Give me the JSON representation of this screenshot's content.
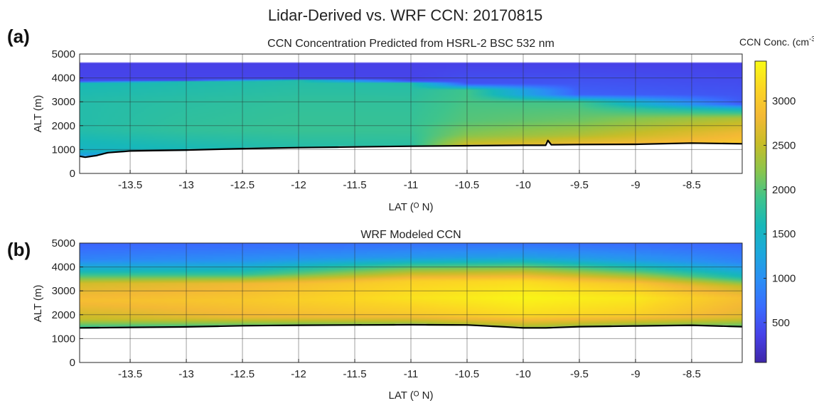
{
  "figure": {
    "title": "Lidar-Derived vs. WRF CCN: 20170815"
  },
  "colormap": [
    "#3e26a8",
    "#4741e8",
    "#3a6bfe",
    "#2b8ef5",
    "#1ca8dc",
    "#17b8b9",
    "#3fc48c",
    "#8bc54c",
    "#c8bd28",
    "#f4b935",
    "#fbd524",
    "#f9fb15"
  ],
  "chart_data": [
    {
      "type": "heatmap",
      "panel_label": "(a)",
      "title": "CCN Concentration Predicted from HSRL-2 BSC 532 nm",
      "xlabel": "LAT (ᴼ N)",
      "ylabel": "ALT (m)",
      "xlim": [
        -13.95,
        -8.05
      ],
      "ylim": [
        0,
        5000
      ],
      "xticks": [
        -13.5,
        -13,
        -12.5,
        -12,
        -11.5,
        -11,
        -10.5,
        -10,
        -9.5,
        -9,
        -8.5
      ],
      "xtick_labels": [
        "-13.5",
        "-13",
        "-12.5",
        "-12",
        "-11.5",
        "-11",
        "-10.5",
        "-10",
        "-9.5",
        "-9",
        "-8.5"
      ],
      "yticks": [
        0,
        1000,
        2000,
        3000,
        4000,
        5000
      ],
      "ytick_labels": [
        "0",
        "1000",
        "2000",
        "3000",
        "4000",
        "5000"
      ],
      "grid": true,
      "data_top_altitude": 4650,
      "ground_line": {
        "lat": [
          -13.95,
          -13.9,
          -13.8,
          -13.7,
          -13.5,
          -13.0,
          -12.5,
          -12.0,
          -11.5,
          -11.0,
          -10.5,
          -10.0,
          -9.8,
          -9.78,
          -9.75,
          -9.5,
          -9.0,
          -8.5,
          -8.05
        ],
        "alt": [
          720,
          680,
          750,
          870,
          940,
          980,
          1040,
          1080,
          1110,
          1140,
          1160,
          1180,
          1180,
          1380,
          1200,
          1210,
          1220,
          1270,
          1240
        ]
      },
      "profiles": [
        {
          "lat": -13.95,
          "layers": [
            [
              0,
              1
            ],
            [
              950,
              1500
            ],
            [
              1800,
              1700
            ],
            [
              3000,
              1700
            ],
            [
              3800,
              1600
            ],
            [
              3850,
              400
            ],
            [
              4650,
              350
            ]
          ]
        },
        {
          "lat": -13.0,
          "layers": [
            [
              0,
              1
            ],
            [
              1000,
              1600
            ],
            [
              1800,
              1800
            ],
            [
              3000,
              1750
            ],
            [
              3850,
              1650
            ],
            [
              3900,
              400
            ],
            [
              4650,
              350
            ]
          ]
        },
        {
          "lat": -12.0,
          "layers": [
            [
              0,
              1
            ],
            [
              1080,
              1700
            ],
            [
              1800,
              1850
            ],
            [
              3000,
              1800
            ],
            [
              3900,
              1700
            ],
            [
              3950,
              400
            ],
            [
              4650,
              350
            ]
          ]
        },
        {
          "lat": -11.0,
          "layers": [
            [
              0,
              1
            ],
            [
              1140,
              1750
            ],
            [
              1800,
              1850
            ],
            [
              3000,
              1800
            ],
            [
              3800,
              1700
            ],
            [
              3850,
              400
            ],
            [
              4650,
              350
            ]
          ]
        },
        {
          "lat": -10.5,
          "layers": [
            [
              0,
              1
            ],
            [
              1160,
              2600
            ],
            [
              1600,
              2200
            ],
            [
              2200,
              2000
            ],
            [
              3500,
              1900
            ],
            [
              3750,
              500
            ],
            [
              4650,
              350
            ]
          ]
        },
        {
          "lat": -9.5,
          "layers": [
            [
              0,
              1
            ],
            [
              1210,
              2800
            ],
            [
              1600,
              2400
            ],
            [
              2200,
              2100
            ],
            [
              3000,
              1900
            ],
            [
              3300,
              600
            ],
            [
              4650,
              350
            ]
          ]
        },
        {
          "lat": -8.05,
          "layers": [
            [
              0,
              1
            ],
            [
              1240,
              3000
            ],
            [
              1700,
              2800
            ],
            [
              2300,
              2400
            ],
            [
              2700,
              1500
            ],
            [
              2900,
              550
            ],
            [
              4650,
              350
            ]
          ]
        }
      ]
    },
    {
      "type": "heatmap",
      "panel_label": "(b)",
      "title": "WRF Modeled CCN",
      "xlabel": "LAT (ᴼ N)",
      "ylabel": "ALT (m)",
      "xlim": [
        -13.95,
        -8.05
      ],
      "ylim": [
        0,
        5000
      ],
      "xticks": [
        -13.5,
        -13,
        -12.5,
        -12,
        -11.5,
        -11,
        -10.5,
        -10,
        -9.5,
        -9,
        -8.5
      ],
      "xtick_labels": [
        "-13.5",
        "-13",
        "-12.5",
        "-12",
        "-11.5",
        "-11",
        "-10.5",
        "-10",
        "-9.5",
        "-9",
        "-8.5"
      ],
      "yticks": [
        0,
        1000,
        2000,
        3000,
        4000,
        5000
      ],
      "ytick_labels": [
        "0",
        "1000",
        "2000",
        "3000",
        "4000",
        "5000"
      ],
      "grid": true,
      "data_top_altitude": 5000,
      "ground_line": {
        "lat": [
          -13.95,
          -13.5,
          -13.0,
          -12.5,
          -12.0,
          -11.5,
          -11.0,
          -10.5,
          -10.2,
          -10.0,
          -9.8,
          -9.5,
          -9.0,
          -8.5,
          -8.05
        ],
        "alt": [
          1450,
          1470,
          1490,
          1540,
          1560,
          1570,
          1580,
          1570,
          1500,
          1450,
          1450,
          1500,
          1530,
          1560,
          1500
        ]
      },
      "profiles": [
        {
          "lat": -13.95,
          "layers": [
            [
              0,
              1
            ],
            [
              1450,
              1800
            ],
            [
              1800,
              2500
            ],
            [
              2600,
              2900
            ],
            [
              3300,
              2600
            ],
            [
              3800,
              1600
            ],
            [
              4300,
              900
            ],
            [
              5000,
              600
            ]
          ]
        },
        {
          "lat": -12.5,
          "layers": [
            [
              0,
              1
            ],
            [
              1540,
              2000
            ],
            [
              1900,
              2800
            ],
            [
              2600,
              3000
            ],
            [
              3300,
              2800
            ],
            [
              3700,
              1800
            ],
            [
              4300,
              1000
            ],
            [
              5000,
              650
            ]
          ]
        },
        {
          "lat": -11.0,
          "layers": [
            [
              0,
              1
            ],
            [
              1580,
              2200
            ],
            [
              2000,
              3000
            ],
            [
              2700,
              3250
            ],
            [
              3400,
              3100
            ],
            [
              3900,
              2200
            ],
            [
              4400,
              1100
            ],
            [
              5000,
              700
            ]
          ]
        },
        {
          "lat": -10.0,
          "layers": [
            [
              0,
              1
            ],
            [
              1450,
              2300
            ],
            [
              2000,
              3200
            ],
            [
              2700,
              3400
            ],
            [
              3400,
              3200
            ],
            [
              3900,
              2300
            ],
            [
              4400,
              1200
            ],
            [
              5000,
              700
            ]
          ]
        },
        {
          "lat": -9.0,
          "layers": [
            [
              0,
              1
            ],
            [
              1530,
              2200
            ],
            [
              2000,
              3100
            ],
            [
              2700,
              3300
            ],
            [
              3300,
              3000
            ],
            [
              3800,
              2000
            ],
            [
              4300,
              1100
            ],
            [
              5000,
              650
            ]
          ]
        },
        {
          "lat": -8.05,
          "layers": [
            [
              0,
              1
            ],
            [
              1500,
              2000
            ],
            [
              1900,
              2700
            ],
            [
              2700,
              2900
            ],
            [
              3200,
              2500
            ],
            [
              3600,
              1600
            ],
            [
              4200,
              900
            ],
            [
              5000,
              600
            ]
          ]
        }
      ]
    }
  ],
  "colorbar": {
    "label": "CCN Conc. (cm",
    "label_exponent": "-3",
    "label_close": ")",
    "range": [
      50,
      3450
    ],
    "ticks": [
      500,
      1000,
      1500,
      2000,
      2500,
      3000
    ],
    "tick_labels": [
      "500",
      "1000",
      "1500",
      "2000",
      "2500",
      "3000"
    ]
  }
}
